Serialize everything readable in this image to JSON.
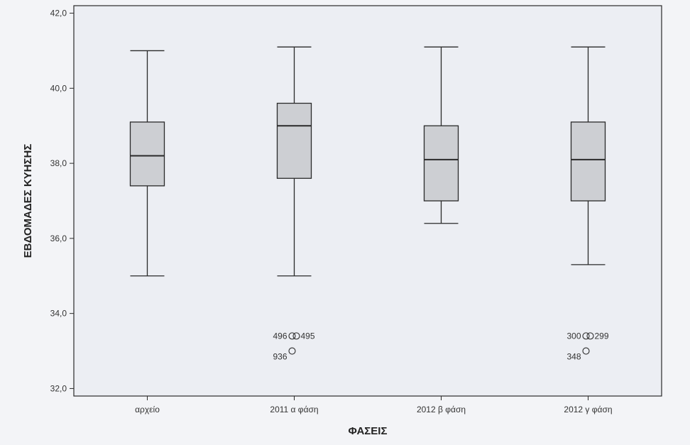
{
  "chart_data": {
    "type": "boxplot",
    "title": "",
    "xlabel": "ΦΑΣΕΙΣ",
    "ylabel": "ΕΒΔΟΜΑΔΕΣ ΚΥΗΣΗΣ",
    "ylim": [
      31.8,
      42.2
    ],
    "yticks": [
      {
        "value": 32,
        "label": "32,0"
      },
      {
        "value": 34,
        "label": "34,0"
      },
      {
        "value": 36,
        "label": "36,0"
      },
      {
        "value": 38,
        "label": "38,0"
      },
      {
        "value": 40,
        "label": "40,0"
      },
      {
        "value": 42,
        "label": "42,0"
      }
    ],
    "grid": false,
    "categories": [
      "αρχείο",
      "2011 α φάση",
      "2012 β φάση",
      "2012 γ φάση"
    ],
    "boxes": [
      {
        "category": "αρχείο",
        "whisker_low": 35.0,
        "q1": 37.4,
        "median": 38.2,
        "q3": 39.1,
        "whisker_high": 41.0,
        "outliers": []
      },
      {
        "category": "2011 α φάση",
        "whisker_low": 35.0,
        "q1": 37.6,
        "median": 39.0,
        "q3": 39.6,
        "whisker_high": 41.1,
        "outliers": [
          {
            "value": 33.4,
            "label": "496",
            "side": "left"
          },
          {
            "value": 33.4,
            "label": "495",
            "side": "right"
          },
          {
            "value": 33.0,
            "label": "936",
            "side": "left"
          }
        ]
      },
      {
        "category": "2012 β φάση",
        "whisker_low": 36.4,
        "q1": 37.0,
        "median": 38.1,
        "q3": 39.0,
        "whisker_high": 41.1,
        "outliers": []
      },
      {
        "category": "2012 γ φάση",
        "whisker_low": 35.3,
        "q1": 37.0,
        "median": 38.1,
        "q3": 39.1,
        "whisker_high": 41.1,
        "outliers": [
          {
            "value": 33.4,
            "label": "300",
            "side": "left"
          },
          {
            "value": 33.4,
            "label": "299",
            "side": "right"
          },
          {
            "value": 33.0,
            "label": "348",
            "side": "left"
          }
        ]
      }
    ],
    "colors": {
      "box_fill": "#cdcfd3",
      "stroke": "#2a2a2a",
      "plot_bg": "#eceef3",
      "page_bg": "#f3f4f7"
    }
  }
}
